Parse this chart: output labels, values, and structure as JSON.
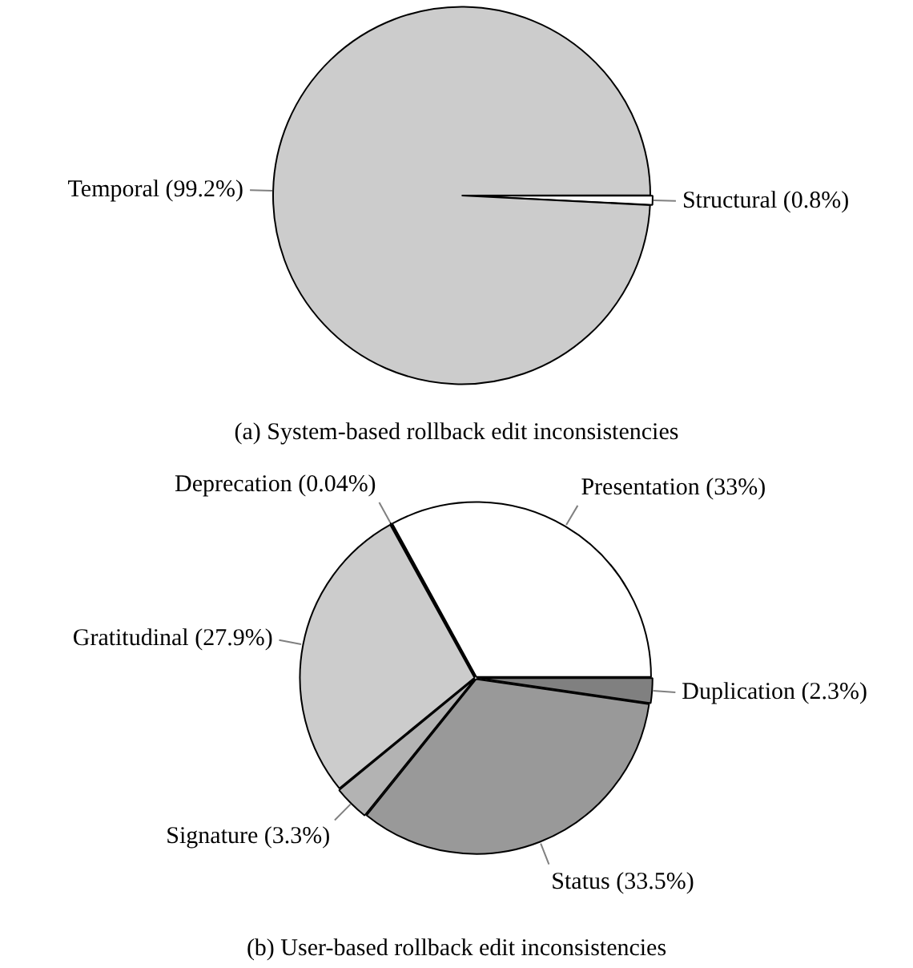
{
  "chart_data": [
    {
      "type": "pie",
      "title": "(a) System-based rollback edit inconsistencies",
      "categories": [
        "Structural (0.8%)",
        "Temporal (99.2%)"
      ],
      "values": [
        0.8,
        99.2
      ],
      "colors": [
        "#ffffff",
        "#cccccc"
      ]
    },
    {
      "type": "pie",
      "title": "(b) User-based rollback edit inconsistencies",
      "categories": [
        "Duplication (2.3%)",
        "Status (33.5%)",
        "Signature (3.3%)",
        "Gratitudinal (27.9%)",
        "Deprecation (0.04%)",
        "Presentation (33%)"
      ],
      "values": [
        2.3,
        33.5,
        3.3,
        27.9,
        0.04,
        33
      ],
      "colors": [
        "#808080",
        "#999999",
        "#b3b3b3",
        "#cccccc",
        "#ffffff",
        "#ffffff"
      ]
    }
  ]
}
